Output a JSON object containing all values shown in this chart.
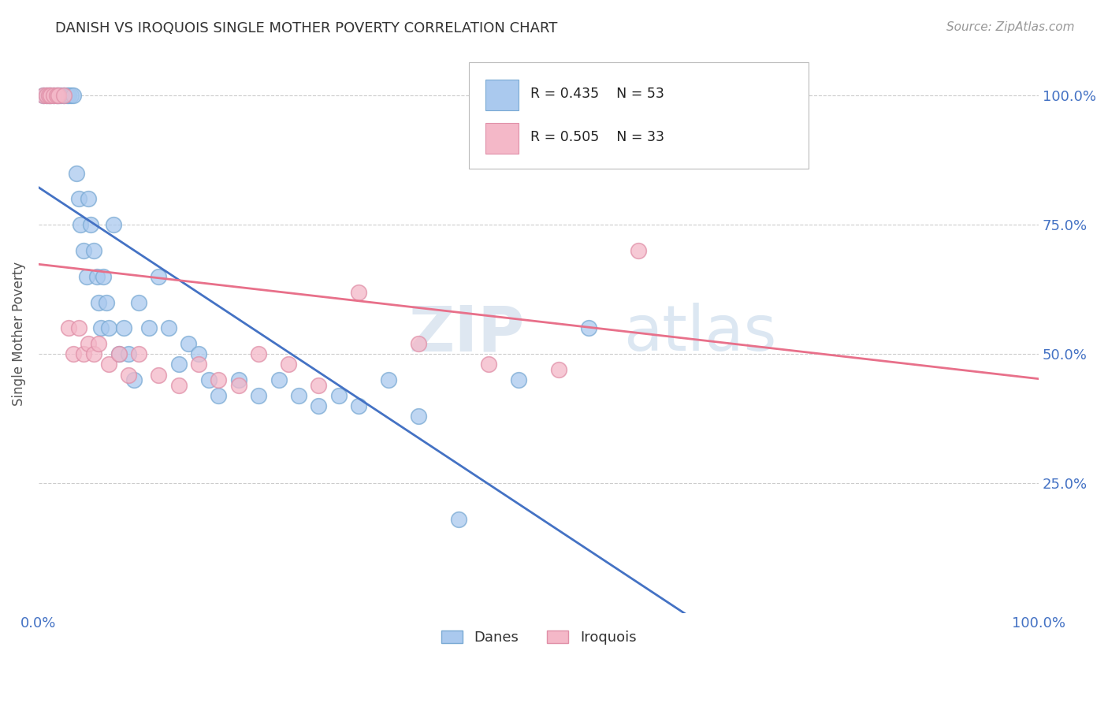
{
  "title": "DANISH VS IROQUOIS SINGLE MOTHER POVERTY CORRELATION CHART",
  "source": "Source: ZipAtlas.com",
  "ylabel": "Single Mother Poverty",
  "legend_danes": "Danes",
  "legend_iroquois": "Iroquois",
  "legend_R_danes": "R = 0.435",
  "legend_N_danes": "N = 53",
  "legend_R_iroquois": "R = 0.505",
  "legend_N_iroquois": "N = 33",
  "danes_color": "#aac9ee",
  "iroquois_color": "#f4b8c8",
  "danes_edge_color": "#7aaad4",
  "iroquois_edge_color": "#e090a8",
  "danes_line_color": "#4472c4",
  "iroquois_line_color": "#e8708a",
  "background_color": "#ffffff",
  "xlim": [
    0.0,
    1.0
  ],
  "ylim": [
    0.0,
    1.0
  ],
  "danes_x": [
    0.005,
    0.008,
    0.01,
    0.012,
    0.015,
    0.018,
    0.02,
    0.022,
    0.025,
    0.028,
    0.03,
    0.032,
    0.035,
    0.038,
    0.04,
    0.042,
    0.045,
    0.048,
    0.05,
    0.052,
    0.055,
    0.058,
    0.06,
    0.062,
    0.065,
    0.068,
    0.07,
    0.075,
    0.08,
    0.085,
    0.09,
    0.095,
    0.1,
    0.11,
    0.12,
    0.13,
    0.14,
    0.15,
    0.16,
    0.17,
    0.18,
    0.2,
    0.22,
    0.24,
    0.26,
    0.28,
    0.3,
    0.32,
    0.35,
    0.38,
    0.42,
    0.48,
    0.55
  ],
  "danes_y": [
    1.0,
    1.0,
    1.0,
    1.0,
    1.0,
    1.0,
    1.0,
    1.0,
    1.0,
    1.0,
    1.0,
    1.0,
    1.0,
    0.85,
    0.8,
    0.75,
    0.7,
    0.65,
    0.8,
    0.75,
    0.7,
    0.65,
    0.6,
    0.55,
    0.65,
    0.6,
    0.55,
    0.75,
    0.5,
    0.55,
    0.5,
    0.45,
    0.6,
    0.55,
    0.65,
    0.55,
    0.48,
    0.52,
    0.5,
    0.45,
    0.42,
    0.45,
    0.42,
    0.45,
    0.42,
    0.4,
    0.42,
    0.4,
    0.45,
    0.38,
    0.18,
    0.45,
    0.55
  ],
  "iroquois_x": [
    0.005,
    0.008,
    0.01,
    0.012,
    0.015,
    0.018,
    0.02,
    0.025,
    0.03,
    0.035,
    0.04,
    0.045,
    0.05,
    0.055,
    0.06,
    0.07,
    0.08,
    0.09,
    0.1,
    0.12,
    0.14,
    0.16,
    0.18,
    0.2,
    0.22,
    0.25,
    0.28,
    0.32,
    0.38,
    0.45,
    0.52,
    0.6,
    0.7
  ],
  "iroquois_y": [
    1.0,
    1.0,
    1.0,
    1.0,
    1.0,
    1.0,
    1.0,
    1.0,
    0.55,
    0.5,
    0.55,
    0.5,
    0.52,
    0.5,
    0.52,
    0.48,
    0.5,
    0.46,
    0.5,
    0.46,
    0.44,
    0.48,
    0.45,
    0.44,
    0.5,
    0.48,
    0.44,
    0.62,
    0.52,
    0.48,
    0.47,
    0.7,
    1.0
  ]
}
